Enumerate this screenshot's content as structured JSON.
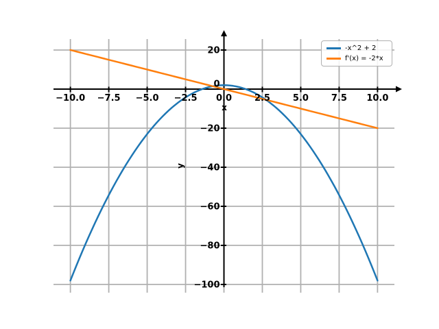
{
  "figure": {
    "background": "#ffffff"
  },
  "chart_data": {
    "type": "line",
    "xlabel": "x",
    "ylabel": "y",
    "xlim": [
      -11.1,
      11.1
    ],
    "ylim": [
      -104.2,
      25.6
    ],
    "grid": true,
    "grid_color": "#b0b0b0",
    "axis_color": "#000000",
    "tick_label_color": "#000000",
    "x_ticks": [
      {
        "value": -10,
        "label": "−10.0"
      },
      {
        "value": -7.5,
        "label": "−7.5"
      },
      {
        "value": -5,
        "label": "−5.0"
      },
      {
        "value": -2.5,
        "label": "−2.5"
      },
      {
        "value": 0,
        "label": "0.0"
      },
      {
        "value": 2.5,
        "label": "2.5"
      },
      {
        "value": 5,
        "label": "5.0"
      },
      {
        "value": 7.5,
        "label": "7.5"
      },
      {
        "value": 10,
        "label": "10.0"
      }
    ],
    "y_ticks": [
      {
        "value": 20,
        "label": "20"
      },
      {
        "value": 0,
        "label": "0"
      },
      {
        "value": -20,
        "label": "−20"
      },
      {
        "value": -40,
        "label": "−40"
      },
      {
        "value": -60,
        "label": "−60"
      },
      {
        "value": -80,
        "label": "−80"
      },
      {
        "value": -100,
        "label": "−100"
      }
    ],
    "legend": {
      "position": "upper right",
      "entries": [
        {
          "label": "-x^2 + 2",
          "color": "#1f77b4"
        },
        {
          "label": "f'(x) = -2*x",
          "color": "#ff7f0e"
        }
      ]
    },
    "series": [
      {
        "name": "-x^2 + 2",
        "color": "#1f77b4",
        "poly_coeffs": [
          2,
          0,
          -1
        ],
        "x_range": [
          -10,
          10
        ],
        "endpoints": [
          [
            -10,
            -98
          ],
          [
            10,
            -98
          ]
        ],
        "vertex": [
          0,
          2
        ]
      },
      {
        "name": "f'(x) = -2*x",
        "color": "#ff7f0e",
        "poly_coeffs": [
          0,
          -2
        ],
        "x_range": [
          -10,
          10
        ],
        "endpoints": [
          [
            -10,
            20
          ],
          [
            10,
            -20
          ]
        ]
      }
    ]
  }
}
